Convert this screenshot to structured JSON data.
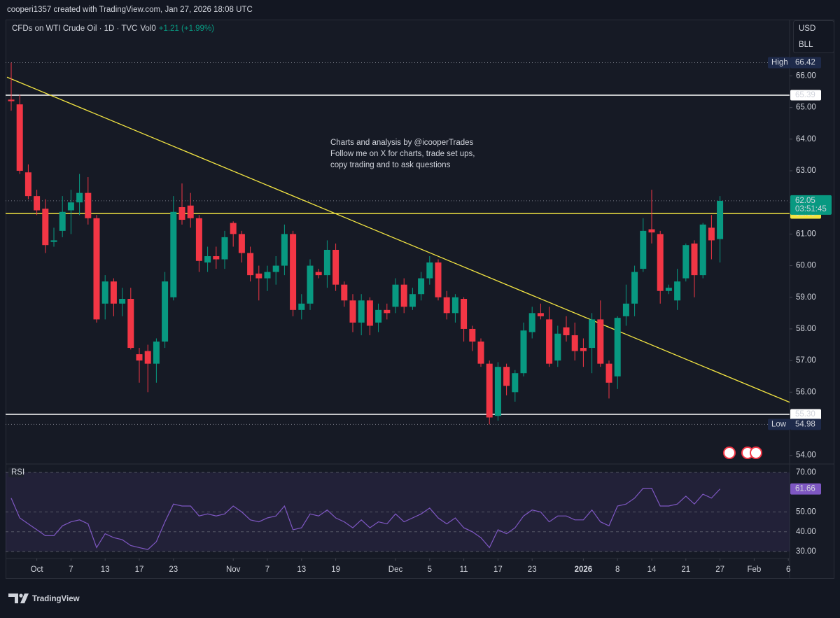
{
  "header": {
    "credit": "cooperi1357 created with TradingView.com, Jan 27, 2026 18:08 UTC",
    "symbol": "CFDs on WTI Crude Oil · 1D · TVC",
    "volume": "Vol0",
    "change": "+1.21 (+1.99%)",
    "buttons": [
      "USD",
      "BLL"
    ]
  },
  "footer": {
    "brand": "TradingView"
  },
  "chart_data": {
    "type": "candlestick",
    "annotation": [
      "Charts and analysis by @icooperTrades",
      "Follow me on X for charts, trade set ups,",
      "copy trading and to ask questions"
    ],
    "categories": [
      null,
      null,
      null,
      "Oct",
      null,
      null,
      null,
      "7",
      null,
      null,
      null,
      "13",
      null,
      null,
      null,
      "17",
      null,
      null,
      null,
      "23",
      null,
      null,
      null,
      null,
      null,
      null,
      "Nov",
      null,
      null,
      null,
      "7",
      null,
      null,
      null,
      "13",
      null,
      null,
      null,
      "19",
      null,
      null,
      null,
      null,
      null,
      null,
      "Dec",
      null,
      null,
      null,
      "5",
      null,
      null,
      null,
      "11",
      null,
      null,
      null,
      "17",
      null,
      null,
      null,
      "23",
      null,
      null,
      null,
      null,
      null,
      "2026",
      null,
      null,
      null,
      "8",
      null,
      null,
      null,
      "14",
      null,
      null,
      null,
      "21",
      null,
      null,
      null,
      "27",
      null,
      null,
      null,
      "Feb",
      null,
      null,
      null,
      "6"
    ],
    "open": [
      65.25,
      65.1,
      62.95,
      62.2,
      61.8,
      60.75,
      61.1,
      61.75,
      62.0,
      62.3,
      61.5,
      58.8,
      59.5,
      58.8,
      58.95,
      57.2,
      57.3,
      56.9,
      57.6,
      59.0,
      61.85,
      61.9,
      61.5,
      60.1,
      60.3,
      60.2,
      61.35,
      61.0,
      60.4,
      59.75,
      59.6,
      59.8,
      60.0,
      61.0,
      58.6,
      58.8,
      59.8,
      59.7,
      60.5,
      59.4,
      58.9,
      58.2,
      58.9,
      58.2,
      58.6,
      58.7,
      59.4,
      58.7,
      59.1,
      59.6,
      60.1,
      59.0,
      58.5,
      58.95,
      58.0,
      57.6,
      56.9,
      55.25,
      56.8,
      56.0,
      56.6,
      57.9,
      58.5,
      58.3,
      57.0,
      58.05,
      57.8,
      57.4,
      57.4,
      58.3,
      56.9,
      56.5,
      58.4,
      58.8,
      59.9,
      61.15,
      61.0,
      59.2,
      58.9,
      59.6,
      60.7,
      59.7,
      61.2,
      60.84,
      null,
      null,
      null,
      null,
      null,
      null,
      null,
      null
    ],
    "high": [
      66.42,
      65.4,
      63.2,
      62.4,
      62.1,
      61.2,
      62.2,
      62.4,
      62.9,
      62.8,
      61.6,
      59.7,
      59.6,
      59.3,
      59.3,
      57.4,
      57.5,
      57.7,
      59.8,
      62.2,
      62.6,
      62.3,
      61.6,
      60.6,
      60.6,
      61.1,
      61.4,
      61.1,
      60.6,
      60.0,
      60.0,
      60.3,
      61.3,
      61.1,
      59.1,
      60.2,
      59.9,
      60.8,
      60.7,
      59.5,
      59.1,
      59.1,
      59.0,
      58.8,
      58.8,
      59.6,
      59.6,
      59.3,
      59.8,
      60.3,
      60.2,
      59.2,
      59.1,
      59.0,
      58.1,
      57.7,
      57.0,
      56.95,
      56.9,
      56.7,
      58.2,
      58.7,
      58.8,
      58.7,
      58.1,
      58.4,
      58.2,
      57.7,
      58.5,
      58.9,
      57.0,
      58.4,
      59.4,
      60.0,
      61.5,
      62.4,
      61.1,
      59.4,
      59.9,
      60.7,
      60.8,
      61.35,
      61.6,
      62.2,
      null,
      null,
      null,
      null,
      null,
      null,
      null,
      null
    ],
    "low": [
      64.9,
      62.9,
      62.1,
      61.6,
      60.4,
      60.6,
      60.9,
      61.0,
      61.6,
      61.3,
      58.2,
      58.3,
      58.4,
      58.4,
      57.35,
      56.3,
      56.0,
      56.3,
      57.4,
      58.9,
      61.3,
      61.2,
      59.8,
      59.8,
      59.9,
      59.9,
      60.6,
      60.1,
      59.5,
      58.9,
      59.2,
      59.4,
      59.7,
      58.4,
      58.3,
      58.6,
      59.6,
      59.3,
      59.2,
      58.7,
      57.9,
      57.8,
      57.8,
      57.9,
      58.3,
      58.5,
      58.5,
      58.6,
      58.9,
      59.4,
      58.9,
      58.3,
      58.2,
      57.6,
      57.3,
      56.8,
      54.98,
      55.1,
      55.9,
      55.7,
      56.5,
      57.7,
      58.3,
      56.8,
      56.8,
      57.6,
      57.0,
      56.8,
      56.6,
      56.8,
      55.8,
      56.1,
      58.1,
      58.4,
      59.8,
      60.7,
      58.8,
      59.1,
      58.6,
      59.5,
      59.0,
      59.6,
      60.2,
      60.1,
      null,
      null,
      null,
      null,
      null,
      null,
      null,
      null
    ],
    "close": [
      65.2,
      63.0,
      62.2,
      61.75,
      60.65,
      60.8,
      61.7,
      62.0,
      62.3,
      61.5,
      58.3,
      59.5,
      58.8,
      58.95,
      57.4,
      57.0,
      56.9,
      57.6,
      59.5,
      61.7,
      61.45,
      61.5,
      60.15,
      60.3,
      60.2,
      60.9,
      61.0,
      60.4,
      59.7,
      59.6,
      59.8,
      60.0,
      61.0,
      58.6,
      58.8,
      60.0,
      59.7,
      60.5,
      59.4,
      58.9,
      58.2,
      58.9,
      58.1,
      58.6,
      58.5,
      59.4,
      58.7,
      59.1,
      59.6,
      60.1,
      59.0,
      58.5,
      59.0,
      58.0,
      57.6,
      56.9,
      55.2,
      56.8,
      56.2,
      56.6,
      57.95,
      58.5,
      58.4,
      56.9,
      57.85,
      57.8,
      57.3,
      57.3,
      58.3,
      56.9,
      56.3,
      58.35,
      58.8,
      59.8,
      61.1,
      61.05,
      59.2,
      59.3,
      59.5,
      60.65,
      59.7,
      61.3,
      60.8,
      62.05,
      null,
      null,
      null,
      null,
      null,
      null,
      null,
      null
    ],
    "up_color": "#089981",
    "down_color": "#f23645",
    "ylim": [
      53.75,
      67.78
    ],
    "yticks": [
      {
        "value": 54,
        "label": "54.00"
      },
      {
        "value": 55,
        "label": "55.00"
      },
      {
        "value": 56,
        "label": "56.00"
      },
      {
        "value": 57,
        "label": "57.00"
      },
      {
        "value": 58,
        "label": "58.00"
      },
      {
        "value": 59,
        "label": "59.00"
      },
      {
        "value": 60,
        "label": "60.00"
      },
      {
        "value": 61,
        "label": "61.00"
      },
      {
        "value": 62,
        "label": "62.00"
      },
      {
        "value": 63,
        "label": "63.00"
      },
      {
        "value": 64,
        "label": "64.00"
      },
      {
        "value": 65,
        "label": "65.00"
      },
      {
        "value": 66,
        "label": "66.00"
      }
    ],
    "levels": {
      "values": [
        65.39,
        61.65,
        55.3
      ],
      "value_labels": [
        "65.39",
        "61.65",
        "55.30"
      ],
      "colors": [
        "#ffffff",
        "#f2e442",
        "#ffffff"
      ]
    },
    "trendline": {
      "x": [
        -0.49,
        91.15
      ],
      "y": [
        65.96,
        55.68
      ],
      "color": "#f2e442"
    },
    "high_marker": {
      "label": "High",
      "value": 66.42
    },
    "low_marker": {
      "label": "Low",
      "value": 54.98
    },
    "last": {
      "value": 62.05,
      "countdown": "03:51:45"
    },
    "rsi": {
      "label": "RSI",
      "color": "#7e57c2",
      "values": [
        57,
        47,
        44,
        41,
        38,
        38,
        43,
        45,
        46,
        44,
        32,
        39,
        37,
        36,
        33,
        32,
        31,
        35,
        45,
        54,
        53,
        53,
        48,
        49,
        48,
        49,
        53,
        50,
        46,
        45,
        47,
        48,
        53,
        41,
        42,
        49,
        48,
        51,
        47,
        45,
        42,
        46,
        42,
        45,
        44,
        49,
        45,
        47,
        49,
        52,
        47,
        44,
        47,
        42,
        40,
        37,
        32,
        41,
        39,
        42,
        48,
        51,
        50,
        45,
        48,
        48,
        46,
        46,
        51,
        45,
        43,
        53,
        54,
        57,
        62,
        62,
        53,
        53,
        54,
        58,
        54,
        59,
        57,
        61.66,
        null,
        null,
        null,
        null,
        null,
        null,
        null,
        null
      ],
      "ylim": [
        26.46,
        73.9
      ],
      "yticks": [
        {
          "value": 30,
          "label": "30.00"
        },
        {
          "value": 40,
          "label": "40.00"
        },
        {
          "value": 50,
          "label": "50.00"
        },
        {
          "value": 70,
          "label": "70.00"
        }
      ],
      "band": [
        30,
        70
      ]
    }
  }
}
